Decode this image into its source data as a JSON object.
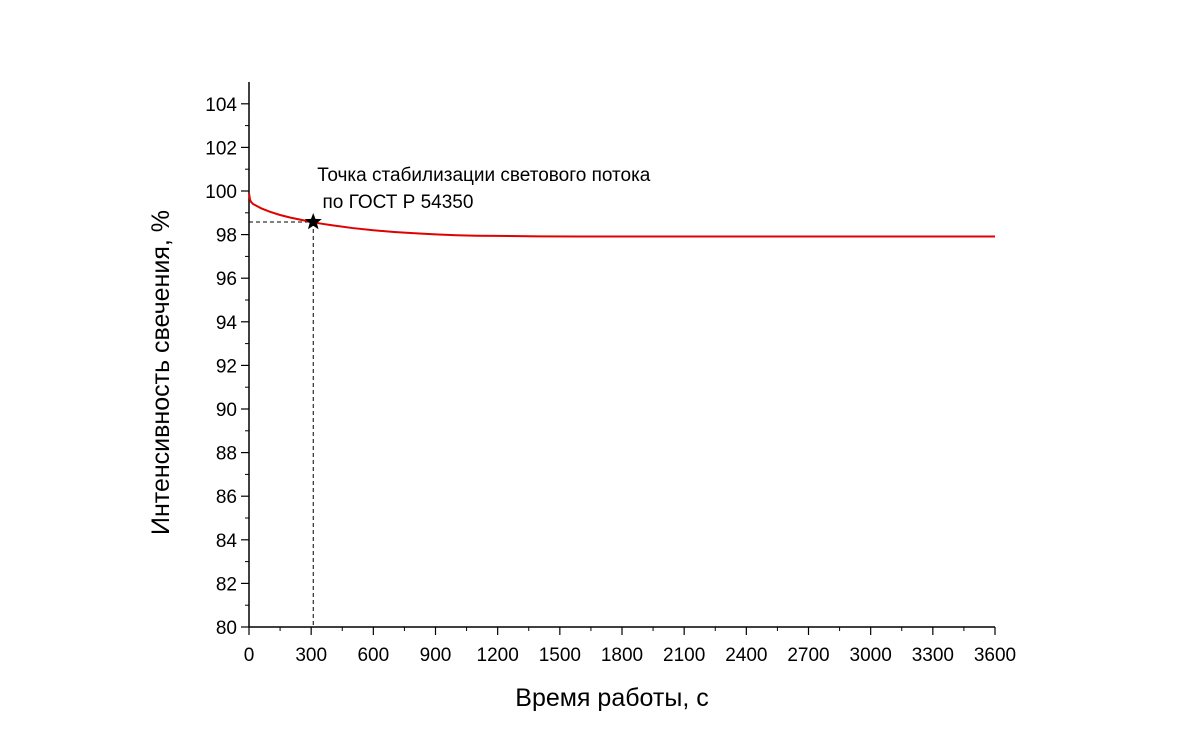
{
  "chart_data": {
    "type": "line",
    "title": "",
    "xlabel": "Время работы, с",
    "ylabel": "Интенсивность свечения, %",
    "xlim": [
      0,
      3600
    ],
    "ylim": [
      80,
      105
    ],
    "x_ticks": [
      0,
      300,
      600,
      900,
      1200,
      1500,
      1800,
      2100,
      2400,
      2700,
      3000,
      3300,
      3600
    ],
    "y_ticks": [
      80,
      82,
      84,
      86,
      88,
      90,
      92,
      94,
      96,
      98,
      100,
      102,
      104
    ],
    "grid": false,
    "line_color": "#e00000",
    "series": [
      {
        "x": [
          0,
          5,
          10,
          20,
          40,
          60,
          100,
          150,
          200,
          250,
          300,
          350,
          400,
          500,
          600,
          700,
          800,
          900,
          1000,
          1100,
          1200,
          1400,
          1600,
          1800,
          2100,
          2400,
          2700,
          3000,
          3300,
          3600
        ],
        "y": [
          99.9,
          99.6,
          99.5,
          99.4,
          99.3,
          99.2,
          99.05,
          98.9,
          98.78,
          98.68,
          98.58,
          98.5,
          98.43,
          98.3,
          98.2,
          98.12,
          98.06,
          98.01,
          97.97,
          97.95,
          97.94,
          97.92,
          97.91,
          97.91,
          97.91,
          97.91,
          97.91,
          97.91,
          97.91,
          97.91
        ]
      }
    ],
    "annotations": [
      {
        "type": "point",
        "marker": "star",
        "x": 310,
        "y": 98.58,
        "guides": true,
        "lines": [
          "Точка стабилизации светового потока",
          " по ГОСТ Р 54350"
        ]
      }
    ]
  }
}
